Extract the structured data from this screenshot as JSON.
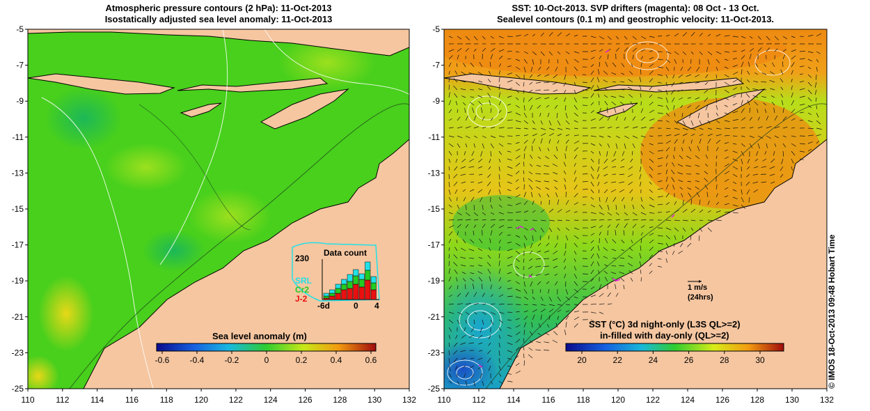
{
  "left_panel": {
    "title_line1": "Atmospheric pressure contours (2 hPa): 11-Oct-2013",
    "title_line2": "Isostatically adjusted sea level anomaly: 11-Oct-2013",
    "colorbar_title": "Sea level anomaly (m)",
    "colorbar_ticks": [
      "-0.6",
      "-0.4",
      "-0.2",
      "0",
      "0.2",
      "0.4",
      "0.6"
    ],
    "inset": {
      "title": "Data count",
      "max_label": "230",
      "x_ticks": [
        "-6d",
        "0",
        "4"
      ],
      "legend": [
        {
          "label": "SRL",
          "color": "#22e0e8"
        },
        {
          "label": "Cr2",
          "color": "#22cc22"
        },
        {
          "label": "J-2",
          "color": "#e81010"
        }
      ]
    }
  },
  "right_panel": {
    "title_line1": "SST: 10-Oct-2013. SVP drifters (magenta): 08 Oct - 13 Oct.",
    "title_line2": "Sealevel contours (0.1 m) and geostrophic velocity: 11-Oct-2013.",
    "colorbar_title_line1": "SST (°C) 3d night-only (L3S QL>=2)",
    "colorbar_title_line2": "in-filled with day-only (QL>=2)",
    "colorbar_ticks": [
      "20",
      "22",
      "24",
      "26",
      "28",
      "30"
    ],
    "velocity_scale_label": "1 m/s",
    "velocity_scale_sublabel": "(24hrs)"
  },
  "axes": {
    "lat_ticks": [
      "-5",
      "-7",
      "-9",
      "-11",
      "-13",
      "-15",
      "-17",
      "-19",
      "-21",
      "-23",
      "-25"
    ],
    "lon_ticks": [
      "110",
      "112",
      "114",
      "116",
      "118",
      "120",
      "122",
      "124",
      "126",
      "128",
      "130",
      "132"
    ]
  },
  "credit": "© IMOS 18-Oct-2013 09:48 Hobart Time",
  "colors": {
    "land": "#f5c6a0",
    "sla_base": "#48d01c",
    "sst_warm": "#ee8a12",
    "sst_mid": "#a6dc1a",
    "sst_cool": "#18a6c8"
  }
}
